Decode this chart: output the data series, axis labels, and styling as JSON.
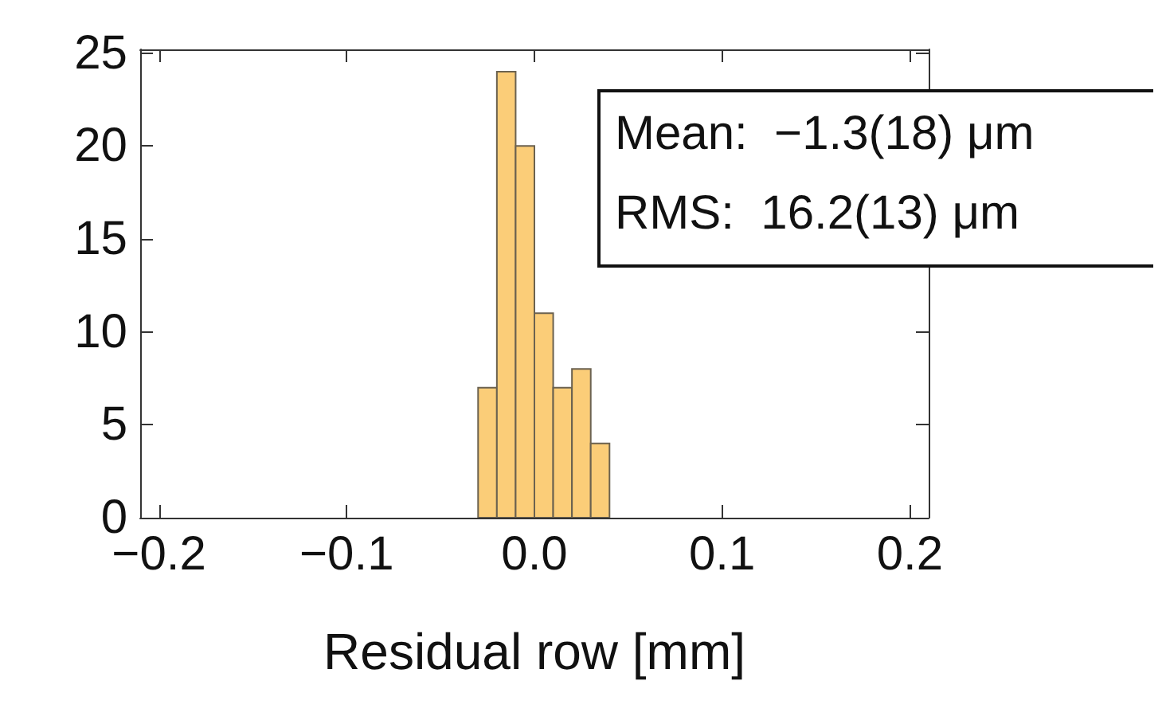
{
  "chart_data": {
    "type": "histogram",
    "xlabel": "Residual row [mm]",
    "bins": [
      -0.03,
      -0.02,
      -0.01,
      0.0,
      0.01,
      0.02,
      0.03,
      0.04
    ],
    "values": [
      7,
      24,
      20,
      11,
      7,
      8,
      4
    ],
    "color": "#fbcd78",
    "xlim": [
      -0.21,
      0.21
    ],
    "xticks": [
      {
        "value": -0.2,
        "label": "−0.2"
      },
      {
        "value": -0.1,
        "label": "−0.1"
      },
      {
        "value": 0,
        "label": "0.0"
      },
      {
        "value": 0.1,
        "label": "0.1"
      },
      {
        "value": 0.2,
        "label": "0.2"
      }
    ],
    "ylim": [
      0,
      25.2
    ],
    "yticks": [
      0,
      5,
      10,
      15,
      20,
      25
    ],
    "annotations": [
      "Mean:  −1.3(18) μm",
      "RMS:  16.2(13) μm"
    ],
    "grid": false
  }
}
